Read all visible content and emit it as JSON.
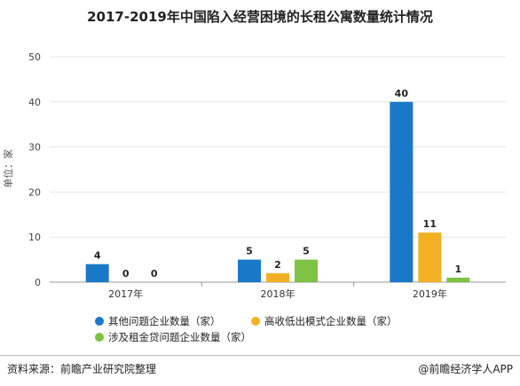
{
  "chart_data": {
    "type": "bar",
    "title": "2017-2019年中国陷入经营困境的长租公寓数量统计情况",
    "ylabel": "单位：家",
    "xlabel": "",
    "ylim": [
      0,
      50
    ],
    "yticks": [
      0,
      10,
      20,
      30,
      40,
      50
    ],
    "categories": [
      "2017年",
      "2018年",
      "2019年"
    ],
    "series": [
      {
        "name": "其他问题企业数量（家）",
        "values": [
          4,
          5,
          40
        ],
        "color": "#1a78c8"
      },
      {
        "name": "高收低出模式企业数量（家）",
        "values": [
          0,
          2,
          11
        ],
        "color": "#f2b124"
      },
      {
        "name": "涉及租金贷问题企业数量（家）",
        "values": [
          0,
          5,
          1
        ],
        "color": "#7dc242"
      }
    ],
    "legend_position": "bottom"
  },
  "footer": {
    "source": "资料来源：前瞻产业研究院整理",
    "brand": "@前瞻经济学人APP"
  }
}
